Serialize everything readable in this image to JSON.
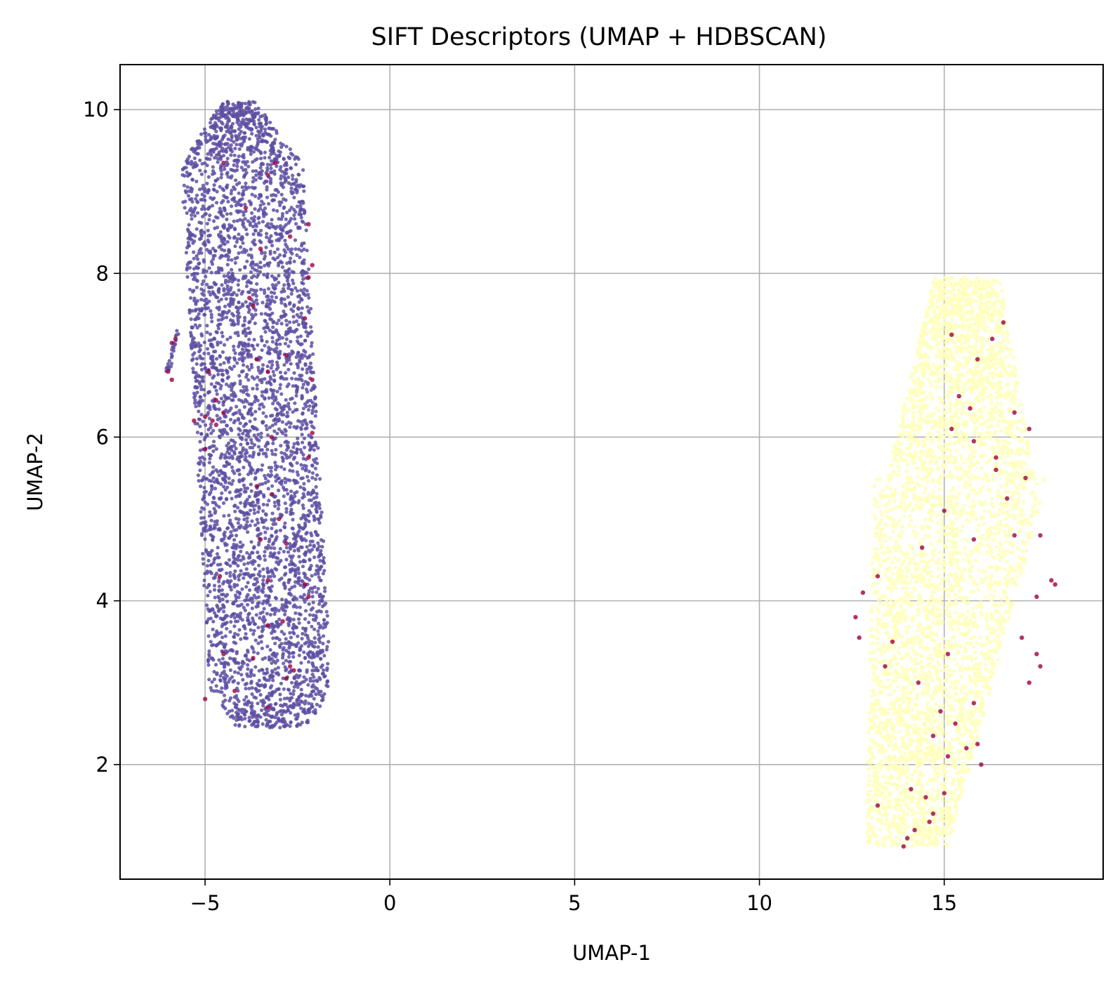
{
  "chart_data": {
    "type": "scatter",
    "title": "SIFT Descriptors (UMAP + HDBSCAN)",
    "xlabel": "UMAP-1",
    "ylabel": "UMAP-2",
    "xlim": [
      -7.3,
      19.3
    ],
    "ylim": [
      0.6,
      10.55
    ],
    "xticks": [
      -5,
      0,
      5,
      10,
      15
    ],
    "xtick_labels": [
      "−5",
      "0",
      "5",
      "10",
      "15"
    ],
    "yticks": [
      2,
      4,
      6,
      8,
      10
    ],
    "ytick_labels": [
      "2",
      "4",
      "6",
      "8",
      "10"
    ],
    "grid": true,
    "legend": "none",
    "colors": {
      "cluster_0": "#5e4fa2",
      "cluster_1": "#ffffbe",
      "noise": "#9e0142"
    },
    "clusters": [
      {
        "label": 0,
        "color": "#5e4fa2",
        "x_range": [
          -5.3,
          -2.0
        ],
        "y_range": [
          2.45,
          10.1
        ],
        "approx_points": 4200,
        "outliers_x_range": [
          -6.1,
          -5.6
        ],
        "outliers_y_range": [
          6.7,
          7.35
        ]
      },
      {
        "label": 1,
        "color": "#ffffbe",
        "x_range": [
          12.4,
          18.0
        ],
        "y_range": [
          1.0,
          7.95
        ],
        "approx_points": 4200
      }
    ],
    "noise_points": [
      [
        -4.5,
        9.35
      ],
      [
        -3.3,
        9.2
      ],
      [
        -3.1,
        9.35
      ],
      [
        -3.9,
        8.8
      ],
      [
        -2.7,
        8.45
      ],
      [
        -2.2,
        8.6
      ],
      [
        -3.5,
        8.3
      ],
      [
        -2.1,
        8.1
      ],
      [
        -2.2,
        7.95
      ],
      [
        -3.8,
        7.7
      ],
      [
        -3.7,
        7.6
      ],
      [
        -2.3,
        7.45
      ],
      [
        -5.8,
        7.2
      ],
      [
        -5.9,
        7.15
      ],
      [
        -6.0,
        6.8
      ],
      [
        -5.9,
        6.7
      ],
      [
        -3.6,
        6.95
      ],
      [
        -2.8,
        7.0
      ],
      [
        -4.9,
        6.8
      ],
      [
        -3.3,
        6.8
      ],
      [
        -2.1,
        6.7
      ],
      [
        -4.7,
        6.45
      ],
      [
        -5.0,
        6.25
      ],
      [
        -4.8,
        6.2
      ],
      [
        -4.7,
        6.15
      ],
      [
        -5.3,
        6.2
      ],
      [
        -4.5,
        6.3
      ],
      [
        -3.2,
        6.0
      ],
      [
        -2.1,
        6.05
      ],
      [
        -2.2,
        5.75
      ],
      [
        -5.0,
        5.85
      ],
      [
        -3.6,
        5.4
      ],
      [
        -3.2,
        5.3
      ],
      [
        -3.0,
        5.0
      ],
      [
        -3.5,
        4.75
      ],
      [
        -2.8,
        4.7
      ],
      [
        -4.6,
        4.3
      ],
      [
        -3.3,
        4.25
      ],
      [
        -2.3,
        4.2
      ],
      [
        -2.2,
        4.05
      ],
      [
        -2.9,
        3.75
      ],
      [
        -3.3,
        3.7
      ],
      [
        -4.5,
        3.35
      ],
      [
        -3.7,
        3.3
      ],
      [
        -2.7,
        3.2
      ],
      [
        -2.6,
        3.15
      ],
      [
        -4.2,
        2.9
      ],
      [
        -5.0,
        2.8
      ],
      [
        -3.3,
        2.7
      ],
      [
        -2.8,
        3.05
      ],
      [
        16.6,
        7.4
      ],
      [
        16.3,
        7.2
      ],
      [
        15.2,
        7.25
      ],
      [
        15.9,
        6.95
      ],
      [
        15.4,
        6.5
      ],
      [
        15.7,
        6.35
      ],
      [
        16.9,
        6.3
      ],
      [
        17.3,
        6.1
      ],
      [
        15.2,
        6.1
      ],
      [
        15.8,
        5.95
      ],
      [
        16.4,
        5.75
      ],
      [
        16.4,
        5.6
      ],
      [
        17.2,
        5.5
      ],
      [
        16.7,
        5.25
      ],
      [
        15.0,
        5.1
      ],
      [
        16.9,
        4.8
      ],
      [
        15.8,
        4.75
      ],
      [
        17.6,
        4.8
      ],
      [
        14.4,
        4.65
      ],
      [
        17.9,
        4.25
      ],
      [
        18.0,
        4.2
      ],
      [
        13.2,
        4.3
      ],
      [
        12.8,
        4.1
      ],
      [
        17.5,
        4.05
      ],
      [
        12.6,
        3.8
      ],
      [
        12.7,
        3.55
      ],
      [
        13.6,
        3.5
      ],
      [
        15.1,
        3.35
      ],
      [
        17.1,
        3.55
      ],
      [
        17.5,
        3.35
      ],
      [
        17.6,
        3.2
      ],
      [
        13.4,
        3.2
      ],
      [
        14.3,
        3.0
      ],
      [
        17.3,
        3.0
      ],
      [
        15.8,
        2.75
      ],
      [
        14.9,
        2.65
      ],
      [
        15.3,
        2.5
      ],
      [
        14.7,
        2.35
      ],
      [
        15.6,
        2.2
      ],
      [
        16.0,
        2.0
      ],
      [
        15.1,
        2.1
      ],
      [
        15.9,
        2.25
      ],
      [
        14.1,
        1.7
      ],
      [
        14.5,
        1.6
      ],
      [
        14.7,
        1.4
      ],
      [
        14.6,
        1.3
      ],
      [
        14.2,
        1.2
      ],
      [
        14.0,
        1.1
      ],
      [
        13.9,
        1.0
      ],
      [
        13.2,
        1.5
      ],
      [
        15.0,
        1.65
      ]
    ]
  }
}
